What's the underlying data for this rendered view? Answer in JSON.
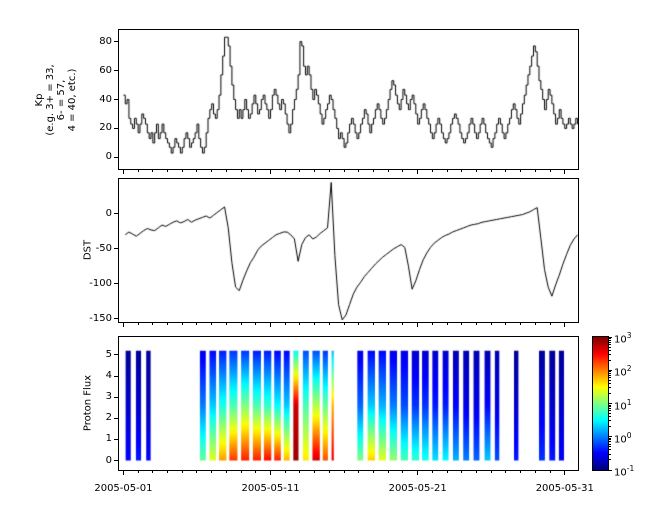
{
  "chart_data": {
    "type": "multi-panel-time-series",
    "x_range_days": [
      0.7,
      31.9
    ],
    "x_ticks": [
      "2005-05-01",
      "2005-05-11",
      "2005-05-21",
      "2005-05-31"
    ],
    "x_tick_days": [
      1,
      11,
      21,
      31
    ],
    "line_color": "#000000",
    "background_color": "#ffffff",
    "panels": [
      {
        "id": "kp",
        "type": "line-step",
        "ylabel_lines": [
          "Kp",
          "(e.g. 3+ = 33,",
          "6- = 57,",
          "4 = 40, etc.)"
        ],
        "yticks": [
          0,
          20,
          40,
          60,
          80
        ],
        "ylim": [
          -8,
          88
        ],
        "samples_per_day": 8,
        "start_day": 1.0,
        "values": [
          [
            43,
            37,
            40,
            27,
            23,
            20,
            27,
            23
          ],
          [
            17,
            23,
            30,
            27,
            23,
            17,
            13,
            17
          ],
          [
            10,
            17,
            23,
            13,
            17,
            23,
            17,
            13
          ],
          [
            10,
            7,
            3,
            7,
            13,
            10,
            7,
            3
          ],
          [
            7,
            13,
            17,
            13,
            7,
            10,
            13,
            17
          ],
          [
            23,
            13,
            7,
            3,
            7,
            17,
            27,
            33
          ],
          [
            37,
            30,
            27,
            33,
            43,
            57,
            70,
            83
          ],
          [
            83,
            77,
            63,
            50,
            40,
            33,
            27,
            33
          ],
          [
            27,
            33,
            40,
            33,
            27,
            30,
            37,
            43
          ],
          [
            37,
            30,
            33,
            40,
            43,
            37,
            33,
            27
          ],
          [
            33,
            43,
            47,
            43,
            37,
            33,
            40,
            37
          ],
          [
            30,
            23,
            17,
            23,
            33,
            40,
            47,
            57
          ],
          [
            80,
            77,
            63,
            57,
            63,
            57,
            47,
            40
          ],
          [
            47,
            43,
            37,
            30,
            23,
            27,
            33,
            37
          ],
          [
            43,
            40,
            33,
            27,
            20,
            13,
            17,
            13
          ],
          [
            7,
            10,
            17,
            23,
            27,
            23,
            17,
            13
          ],
          [
            17,
            23,
            27,
            33,
            30,
            23,
            17,
            23
          ],
          [
            27,
            33,
            37,
            33,
            27,
            23,
            27,
            33
          ],
          [
            40,
            47,
            53,
            50,
            43,
            37,
            33,
            40
          ],
          [
            47,
            43,
            37,
            33,
            40,
            43,
            37,
            30
          ],
          [
            23,
            27,
            33,
            37,
            33,
            27,
            23,
            17
          ],
          [
            13,
            17,
            23,
            27,
            23,
            17,
            13,
            10
          ],
          [
            13,
            17,
            23,
            27,
            30,
            27,
            23,
            17
          ],
          [
            13,
            10,
            13,
            17,
            23,
            27,
            23,
            17
          ],
          [
            13,
            17,
            23,
            27,
            23,
            17,
            13,
            10
          ],
          [
            7,
            13,
            17,
            23,
            27,
            23,
            17,
            13
          ],
          [
            17,
            23,
            27,
            33,
            37,
            33,
            27,
            23
          ],
          [
            30,
            37,
            43,
            50,
            57,
            63,
            70,
            77
          ],
          [
            73,
            63,
            53,
            47,
            40,
            33,
            40,
            47
          ],
          [
            43,
            37,
            30,
            23,
            27,
            33,
            27,
            23
          ],
          [
            20,
            23,
            27,
            23,
            20,
            23,
            27,
            23
          ]
        ]
      },
      {
        "id": "dst",
        "type": "line",
        "ylabel": "DST",
        "yticks": [
          0,
          -50,
          -100,
          -150
        ],
        "ylim": [
          -155,
          50
        ],
        "samples_per_day": 4,
        "start_day": 1.0,
        "values": [
          [
            -30,
            -26,
            -29,
            -32
          ],
          [
            -28,
            -24,
            -21,
            -23
          ],
          [
            -24,
            -20,
            -16,
            -18
          ],
          [
            -15,
            -12,
            -10,
            -13
          ],
          [
            -11,
            -8,
            -12,
            -9
          ],
          [
            -7,
            -5,
            -3,
            -6
          ],
          [
            -2,
            2,
            6,
            10
          ],
          [
            -20,
            -70,
            -105,
            -110
          ],
          [
            -95,
            -82,
            -70,
            -62
          ],
          [
            -52,
            -46,
            -42,
            -38
          ],
          [
            -34,
            -30,
            -28,
            -26
          ],
          [
            -26,
            -30,
            -36,
            -68
          ],
          [
            -44,
            -34,
            -30,
            -36
          ],
          [
            -33,
            -28,
            -24,
            -20
          ],
          [
            45,
            -60,
            -130,
            -152
          ],
          [
            -145,
            -130,
            -115,
            -105
          ],
          [
            -98,
            -90,
            -84,
            -78
          ],
          [
            -72,
            -67,
            -62,
            -58
          ],
          [
            -54,
            -50,
            -47,
            -44
          ],
          [
            -48,
            -75,
            -108,
            -96
          ],
          [
            -80,
            -66,
            -56,
            -48
          ],
          [
            -42,
            -38,
            -34,
            -31
          ],
          [
            -29,
            -26,
            -24,
            -22
          ],
          [
            -20,
            -18,
            -16,
            -15
          ],
          [
            -14,
            -12,
            -11,
            -10
          ],
          [
            -9,
            -8,
            -7,
            -6
          ],
          [
            -5,
            -4,
            -3,
            -2
          ],
          [
            -1,
            1,
            3,
            6
          ],
          [
            9,
            -35,
            -80,
            -105
          ],
          [
            -118,
            -102,
            -88,
            -72
          ],
          [
            -58,
            -45,
            -36,
            -30
          ]
        ]
      },
      {
        "id": "proton_flux",
        "type": "spectrogram",
        "ylabel": "Proton Flux",
        "yticks": [
          0,
          1,
          2,
          3,
          4,
          5
        ],
        "ylim": [
          -0.45,
          5.85
        ],
        "bar_y_extent": [
          0,
          5.2
        ],
        "value_scale": "log10",
        "colormap": "jet",
        "colorbar": {
          "vmin": -1,
          "vmax": 3,
          "tick_values": [
            3,
            2,
            1,
            0,
            -1
          ],
          "tick_exponents": [
            "3",
            "2",
            "1",
            "0",
            "-1"
          ],
          "tick_labels": [
            "10^3",
            "10^2",
            "10^1",
            "10^0",
            "10^-1"
          ]
        },
        "bars": [
          {
            "day": 1.15,
            "width": 0.35,
            "v": [
              -0.5,
              -0.7,
              -0.9
            ]
          },
          {
            "day": 1.85,
            "width": 0.35,
            "v": [
              -0.4,
              -0.7,
              -0.9
            ]
          },
          {
            "day": 2.55,
            "width": 0.3,
            "v": [
              -0.5,
              -0.8,
              -0.9
            ]
          },
          {
            "day": 6.2,
            "width": 0.4,
            "v": [
              0.9,
              0.0,
              -0.6
            ]
          },
          {
            "day": 6.85,
            "width": 0.45,
            "v": [
              1.4,
              0.3,
              -0.5
            ]
          },
          {
            "day": 7.5,
            "width": 0.5,
            "v": [
              1.9,
              0.6,
              -0.4
            ]
          },
          {
            "day": 8.2,
            "width": 0.55,
            "v": [
              2.3,
              0.8,
              -0.3
            ]
          },
          {
            "day": 9.0,
            "width": 0.55,
            "v": [
              2.4,
              1.0,
              -0.3
            ]
          },
          {
            "day": 9.8,
            "width": 0.55,
            "v": [
              2.4,
              0.8,
              -0.4
            ]
          },
          {
            "day": 10.55,
            "width": 0.5,
            "v": [
              2.5,
              0.7,
              -0.4
            ]
          },
          {
            "day": 11.25,
            "width": 0.45,
            "v": [
              2.4,
              0.5,
              -0.5
            ]
          },
          {
            "day": 11.9,
            "width": 0.4,
            "v": [
              1.8,
              0.3,
              -0.5
            ]
          },
          {
            "day": 12.55,
            "width": 0.35,
            "v": [
              2.9,
              2.7,
              0.5
            ]
          },
          {
            "day": 13.2,
            "width": 0.4,
            "v": [
              1.6,
              0.8,
              -0.2
            ]
          },
          {
            "day": 13.85,
            "width": 0.5,
            "v": [
              2.7,
              1.2,
              -0.2
            ]
          },
          {
            "day": 14.55,
            "width": 0.35,
            "v": [
              2.2,
              0.9,
              -0.3
            ]
          },
          {
            "day": 15.15,
            "width": 0.15,
            "v": [
              2.6,
              1.8,
              0.2
            ]
          },
          {
            "day": 16.9,
            "width": 0.4,
            "v": [
              1.0,
              -0.1,
              -0.6
            ]
          },
          {
            "day": 17.6,
            "width": 0.5,
            "v": [
              1.7,
              0.3,
              -0.5
            ]
          },
          {
            "day": 18.35,
            "width": 0.5,
            "v": [
              1.4,
              0.2,
              -0.5
            ]
          },
          {
            "day": 19.1,
            "width": 0.5,
            "v": [
              1.1,
              0.0,
              -0.6
            ]
          },
          {
            "day": 19.85,
            "width": 0.5,
            "v": [
              0.8,
              -0.2,
              -0.6
            ]
          },
          {
            "day": 20.6,
            "width": 0.5,
            "v": [
              0.7,
              -0.3,
              -0.7
            ]
          },
          {
            "day": 21.3,
            "width": 0.45,
            "v": [
              0.6,
              -0.3,
              -0.7
            ]
          },
          {
            "day": 22.0,
            "width": 0.4,
            "v": [
              0.4,
              -0.4,
              -0.7
            ]
          },
          {
            "day": 22.7,
            "width": 0.4,
            "v": [
              0.5,
              -0.4,
              -0.7
            ]
          },
          {
            "day": 23.4,
            "width": 0.4,
            "v": [
              0.2,
              -0.5,
              -0.8
            ]
          },
          {
            "day": 24.1,
            "width": 0.4,
            "v": [
              0.0,
              -0.6,
              -0.8
            ]
          },
          {
            "day": 24.8,
            "width": 0.4,
            "v": [
              -0.1,
              -0.6,
              -0.8
            ]
          },
          {
            "day": 25.55,
            "width": 0.4,
            "v": [
              0.3,
              -0.5,
              -0.8
            ]
          },
          {
            "day": 26.25,
            "width": 0.3,
            "v": [
              -0.2,
              -0.6,
              -0.8
            ]
          },
          {
            "day": 27.55,
            "width": 0.3,
            "v": [
              -0.4,
              -0.7,
              -0.9
            ]
          },
          {
            "day": 29.25,
            "width": 0.4,
            "v": [
              -0.3,
              -0.6,
              -0.9
            ]
          },
          {
            "day": 29.95,
            "width": 0.4,
            "v": [
              -0.4,
              -0.7,
              -0.9
            ]
          },
          {
            "day": 30.6,
            "width": 0.35,
            "v": [
              -0.5,
              -0.7,
              -0.9
            ]
          }
        ]
      }
    ]
  }
}
